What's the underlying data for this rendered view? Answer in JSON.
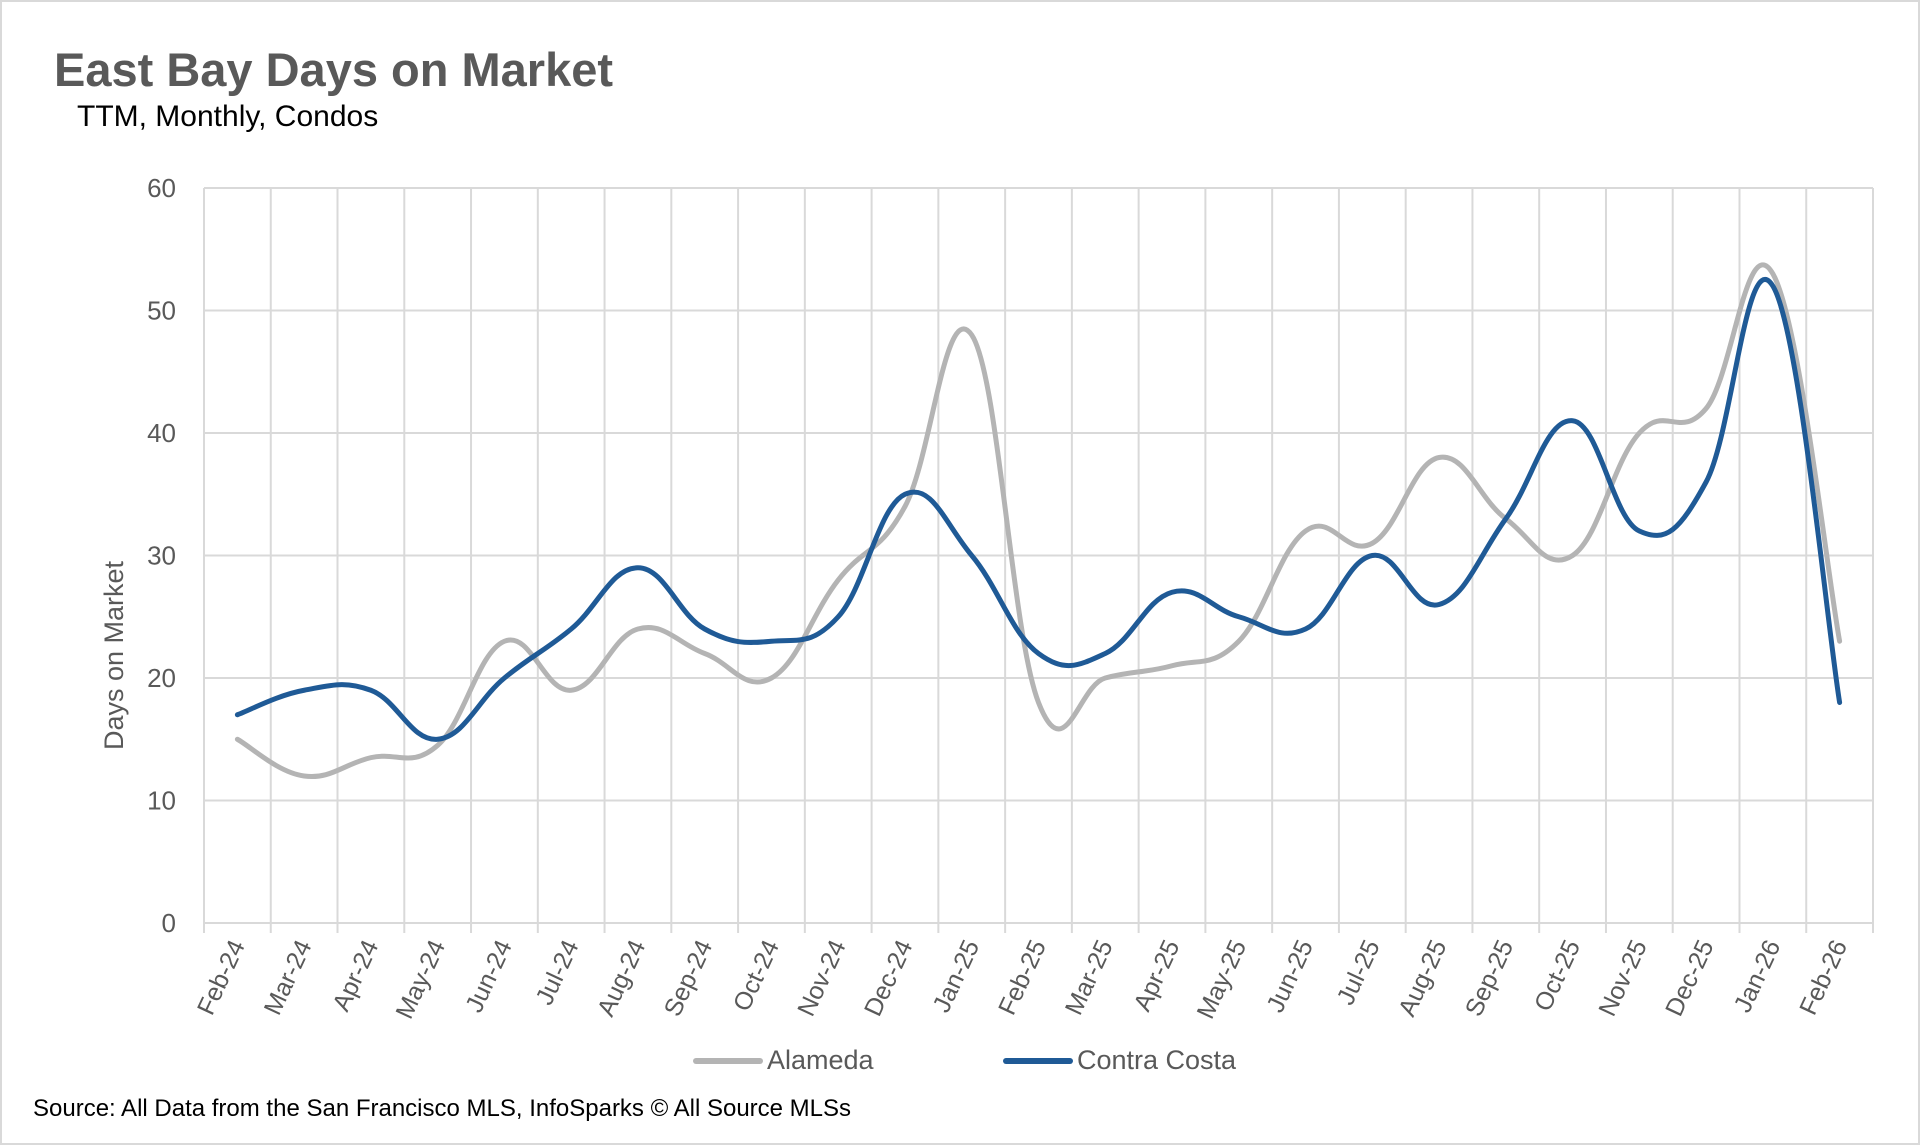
{
  "chart_data": {
    "type": "line",
    "title": "East Bay Days on Market",
    "subtitle": "TTM, Monthly, Condos",
    "xlabel": "",
    "ylabel": "Days on Market",
    "ylim": [
      0,
      60
    ],
    "yticks": [
      0,
      10,
      20,
      30,
      40,
      50,
      60
    ],
    "grid": true,
    "smoothed": true,
    "legend_position": "bottom",
    "categories": [
      "Feb-24",
      "Mar-24",
      "Apr-24",
      "May-24",
      "Jun-24",
      "Jul-24",
      "Aug-24",
      "Sep-24",
      "Oct-24",
      "Nov-24",
      "Dec-24",
      "Jan-25",
      "Feb-25",
      "Mar-25",
      "Apr-25",
      "May-25",
      "Jun-25",
      "Jul-25",
      "Aug-25",
      "Sep-25",
      "Oct-25",
      "Nov-25",
      "Dec-25",
      "Jan-26",
      "Feb-26"
    ],
    "series": [
      {
        "name": "Alameda",
        "color": "#b4b4b4",
        "values": [
          15,
          12,
          13.5,
          14.5,
          23,
          19,
          24,
          22,
          20,
          28,
          34,
          48,
          18,
          20,
          21,
          23,
          32,
          31,
          38,
          33,
          30,
          40,
          42,
          53,
          23
        ]
      },
      {
        "name": "Contra Costa",
        "color": "#1f5a96",
        "values": [
          17,
          19,
          19,
          15,
          20,
          24,
          29,
          24,
          23,
          25,
          35,
          30,
          22,
          22,
          27,
          25,
          24,
          30,
          26,
          33,
          41,
          32,
          36,
          52,
          18
        ]
      }
    ],
    "source": "Source: All Data from the San Francisco MLS, InfoSparks © All Source MLSs"
  }
}
